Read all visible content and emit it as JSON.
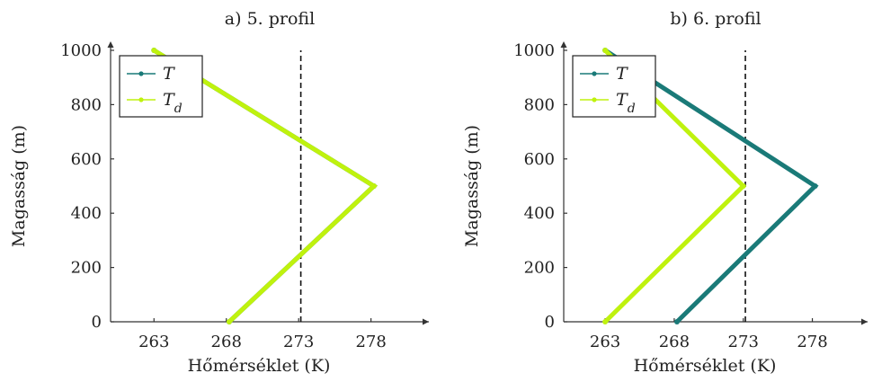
{
  "colors": {
    "T": "#1a7a78",
    "Td": "#bff20e"
  },
  "chart_data": [
    {
      "type": "line",
      "title": "a) 5. profil",
      "xlabel": "Hőmérséklet (K)",
      "ylabel": "Magasság (m)",
      "xlim": [
        260,
        282
      ],
      "ylim": [
        0,
        1000
      ],
      "xticks": [
        263,
        268,
        273,
        278
      ],
      "yticks": [
        0,
        200,
        400,
        600,
        800,
        1000
      ],
      "reference_x": 273.15,
      "legend": {
        "position": "top-left",
        "entries": [
          {
            "key": "T",
            "label": "T",
            "sub": ""
          },
          {
            "key": "Td",
            "label": "T",
            "sub": "d"
          }
        ]
      },
      "series": [
        {
          "name": "T",
          "key": "T",
          "x": [
            268.2,
            278.2,
            263.0
          ],
          "y": [
            0,
            500,
            1000
          ]
        },
        {
          "name": "Td",
          "key": "Td",
          "x": [
            268.2,
            278.2,
            263.0
          ],
          "y": [
            0,
            500,
            1000
          ]
        }
      ]
    },
    {
      "type": "line",
      "title": "b) 6. profil",
      "xlabel": "Hőmérséklet (K)",
      "ylabel": "Magasság (m)",
      "xlim": [
        260,
        282
      ],
      "ylim": [
        0,
        1000
      ],
      "xticks": [
        263,
        268,
        273,
        278
      ],
      "yticks": [
        0,
        200,
        400,
        600,
        800,
        1000
      ],
      "reference_x": 273.15,
      "legend": {
        "position": "top-left",
        "entries": [
          {
            "key": "T",
            "label": "T",
            "sub": ""
          },
          {
            "key": "Td",
            "label": "T",
            "sub": "d"
          }
        ]
      },
      "series": [
        {
          "name": "T",
          "key": "T",
          "x": [
            268.2,
            278.2,
            263.0
          ],
          "y": [
            0,
            500,
            1000
          ]
        },
        {
          "name": "Td",
          "key": "Td",
          "x": [
            263.0,
            273.0,
            263.0
          ],
          "y": [
            0,
            500,
            1000
          ]
        }
      ]
    }
  ]
}
